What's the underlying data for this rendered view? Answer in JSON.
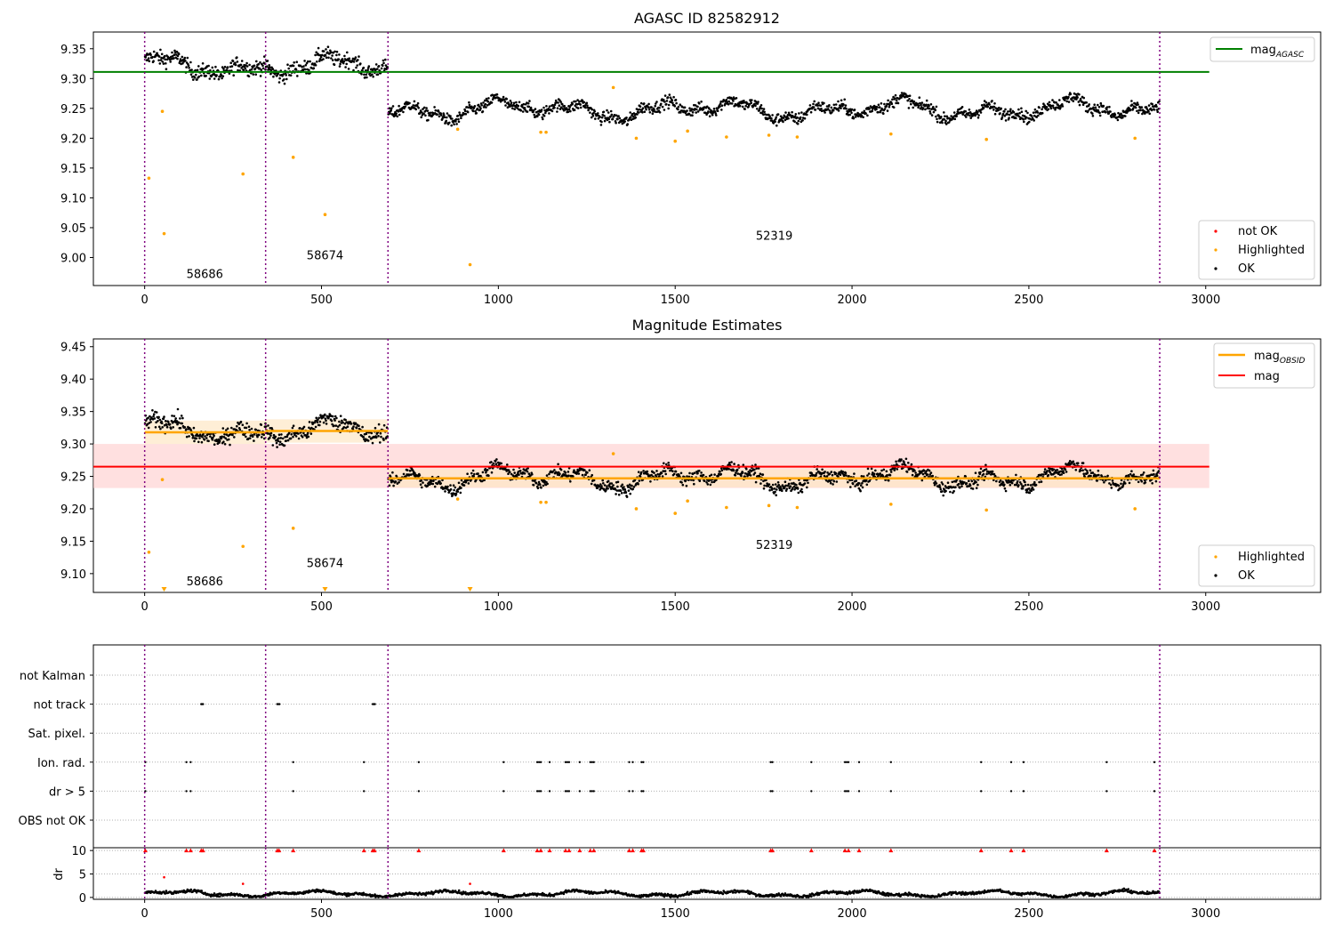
{
  "colors": {
    "ok": "#000000",
    "highlighted": "#ffa500",
    "not_ok": "#ff0000",
    "agasc": "#008000",
    "obsid_mag": "#ffa500",
    "mag": "#ff0000",
    "vline": "#800080",
    "band_mag": "#ffcccc",
    "band_obsid": "#fde7c4"
  },
  "chart_data": [
    {
      "type": "scatter",
      "title": "AGASC ID 82582912",
      "xlim": [
        -145,
        3325
      ],
      "ylim": [
        8.953,
        9.378
      ],
      "xticks": [
        "0",
        "500",
        "1000",
        "1500",
        "2000",
        "2500",
        "3000"
      ],
      "yticks": [
        "9.00",
        "9.05",
        "9.10",
        "9.15",
        "9.20",
        "9.25",
        "9.30",
        "9.35"
      ],
      "obsid_boundaries": [
        0,
        342,
        688,
        2870
      ],
      "obsid_labels": [
        {
          "text": "58686",
          "x": 170,
          "y": 8.966
        },
        {
          "text": "58674",
          "x": 510,
          "y": 8.997
        },
        {
          "text": "52319",
          "x": 1780,
          "y": 9.03
        }
      ],
      "mag_agasc": {
        "value": 9.311,
        "x_range": [
          -145,
          3010
        ]
      },
      "segments": [
        {
          "x_range": [
            0,
            342
          ],
          "center": 9.32,
          "spread": 0.018
        },
        {
          "x_range": [
            342,
            688
          ],
          "center": 9.32,
          "spread": 0.018
        },
        {
          "x_range": [
            688,
            2870
          ],
          "center": 9.248,
          "spread": 0.014
        }
      ],
      "highlighted_points": [
        [
          12,
          9.133
        ],
        [
          50,
          9.245
        ],
        [
          55,
          9.04
        ],
        [
          278,
          9.14
        ],
        [
          420,
          9.168
        ],
        [
          510,
          9.072
        ],
        [
          885,
          9.215
        ],
        [
          920,
          8.988
        ],
        [
          1120,
          9.21
        ],
        [
          1135,
          9.21
        ],
        [
          1325,
          9.285
        ],
        [
          1390,
          9.2
        ],
        [
          1500,
          9.195
        ],
        [
          1535,
          9.212
        ],
        [
          1645,
          9.202
        ],
        [
          1765,
          9.205
        ],
        [
          1845,
          9.202
        ],
        [
          2110,
          9.207
        ],
        [
          2380,
          9.198
        ],
        [
          2800,
          9.2
        ]
      ],
      "legend": {
        "entries": [
          "mag_AGASC"
        ],
        "position": "upper right"
      },
      "legend2": {
        "entries": [
          "not OK",
          "Highlighted",
          "OK"
        ],
        "position": "lower right"
      }
    },
    {
      "type": "scatter",
      "title": "Magnitude Estimates",
      "xlim": [
        -145,
        3325
      ],
      "ylim": [
        9.071,
        9.462
      ],
      "xticks": [
        "0",
        "500",
        "1000",
        "1500",
        "2000",
        "2500",
        "3000"
      ],
      "yticks": [
        "9.10",
        "9.15",
        "9.20",
        "9.25",
        "9.30",
        "9.35",
        "9.40",
        "9.45"
      ],
      "obsid_boundaries": [
        0,
        342,
        688,
        2870
      ],
      "obsid_labels": [
        {
          "text": "58686",
          "x": 170,
          "y": 9.082
        },
        {
          "text": "58674",
          "x": 510,
          "y": 9.11
        },
        {
          "text": "52319",
          "x": 1780,
          "y": 9.138
        }
      ],
      "mag": {
        "value": 9.265,
        "band": [
          9.232,
          9.3
        ],
        "x_range": [
          -145,
          3010
        ]
      },
      "mag_obsid": [
        {
          "x_range": [
            0,
            342
          ],
          "value": 9.318,
          "band": [
            9.3,
            9.336
          ]
        },
        {
          "x_range": [
            342,
            688
          ],
          "value": 9.32,
          "band": [
            9.302,
            9.338
          ]
        },
        {
          "x_range": [
            688,
            2870
          ],
          "value": 9.247,
          "band": [
            9.233,
            9.261
          ]
        }
      ],
      "segments": [
        {
          "x_range": [
            0,
            342
          ],
          "center": 9.32,
          "spread": 0.018
        },
        {
          "x_range": [
            342,
            688
          ],
          "center": 9.32,
          "spread": 0.018
        },
        {
          "x_range": [
            688,
            2870
          ],
          "center": 9.248,
          "spread": 0.014
        }
      ],
      "highlighted_points": [
        [
          12,
          9.133
        ],
        [
          50,
          9.245
        ],
        [
          278,
          9.142
        ],
        [
          420,
          9.17
        ],
        [
          885,
          9.215
        ],
        [
          1120,
          9.21
        ],
        [
          1135,
          9.21
        ],
        [
          1325,
          9.285
        ],
        [
          1390,
          9.2
        ],
        [
          1500,
          9.193
        ],
        [
          1535,
          9.212
        ],
        [
          1645,
          9.202
        ],
        [
          1765,
          9.205
        ],
        [
          1845,
          9.202
        ],
        [
          2110,
          9.207
        ],
        [
          2380,
          9.198
        ],
        [
          2800,
          9.2
        ]
      ],
      "offscale_markers": [
        55,
        510,
        920
      ],
      "legend": {
        "entries": [
          "mag_OBSID",
          "mag"
        ],
        "position": "upper right"
      },
      "legend2": {
        "entries": [
          "Highlighted",
          "OK"
        ],
        "position": "lower right"
      }
    },
    {
      "type": "scatter",
      "title": "",
      "xlim": [
        -145,
        3325
      ],
      "categories": [
        "not Kalman",
        "not track",
        "Sat. pixel.",
        "Ion. rad.",
        "dr > 5",
        "OBS not OK"
      ],
      "obsid_boundaries": [
        0,
        342,
        688,
        2870
      ],
      "flag_times": {
        "not track": [
          160,
          162,
          165,
          375,
          378,
          381,
          645,
          648,
          651
        ],
        "Ion. rad.": [
          2,
          118,
          130,
          420,
          620,
          775,
          1015,
          1110,
          1115,
          1120,
          1145,
          1190,
          1195,
          1200,
          1230,
          1260,
          1265,
          1270,
          1370,
          1380,
          1405,
          1410,
          1770,
          1775,
          1885,
          1980,
          1985,
          1990,
          2020,
          2110,
          2365,
          2450,
          2485,
          2720,
          2855
        ],
        "dr > 5": [
          2,
          118,
          130,
          420,
          620,
          775,
          1015,
          1110,
          1115,
          1120,
          1145,
          1190,
          1195,
          1200,
          1230,
          1260,
          1265,
          1270,
          1370,
          1380,
          1405,
          1410,
          1770,
          1775,
          1885,
          1980,
          1985,
          1990,
          2020,
          2110,
          2365,
          2450,
          2485,
          2720,
          2855
        ]
      }
    },
    {
      "type": "scatter",
      "title": "",
      "ylabel": "dr",
      "xlim": [
        -145,
        3325
      ],
      "ylim": [
        -0.4,
        10.6
      ],
      "xticks": [
        "0",
        "500",
        "1000",
        "1500",
        "2000",
        "2500",
        "3000"
      ],
      "yticks": [
        "0",
        "5",
        "10"
      ],
      "obsid_boundaries": [
        0,
        342,
        688,
        2870
      ],
      "clipped_at": 10,
      "clipped_times": [
        2,
        118,
        130,
        160,
        165,
        375,
        380,
        420,
        620,
        645,
        650,
        775,
        1015,
        1110,
        1120,
        1145,
        1190,
        1200,
        1230,
        1260,
        1270,
        1370,
        1380,
        1405,
        1410,
        1770,
        1775,
        1885,
        1980,
        1990,
        2020,
        2110,
        2365,
        2450,
        2485,
        2720,
        2855
      ],
      "red_points": [
        [
          55,
          4.3
        ],
        [
          278,
          2.9
        ],
        [
          920,
          2.9
        ]
      ]
    }
  ]
}
